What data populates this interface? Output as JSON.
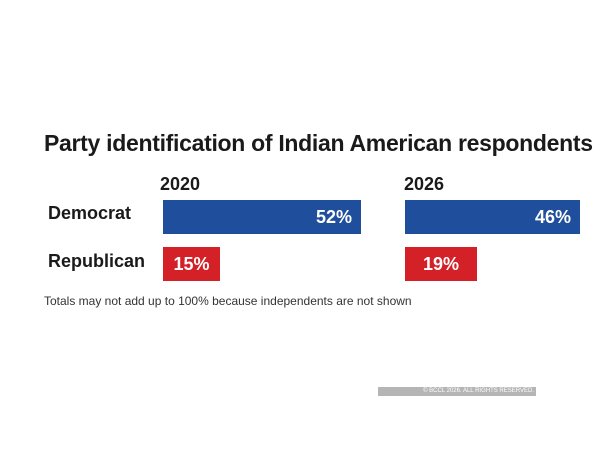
{
  "chart_data": {
    "type": "bar",
    "orientation": "horizontal",
    "title": "Party identification of Indian American respondents",
    "categories": [
      "Democrat",
      "Republican"
    ],
    "panels": [
      {
        "year": "2020",
        "values": [
          52,
          15
        ],
        "labels": [
          "52%",
          "15%"
        ]
      },
      {
        "year": "2026",
        "values": [
          46,
          19
        ],
        "labels": [
          "46%",
          "19%"
        ]
      }
    ],
    "unit": "%",
    "colors": {
      "Democrat": "#1f4e9c",
      "Republican": "#d42027"
    },
    "grid": false,
    "legend": "none"
  },
  "footnote": "Totals may not add up to 100% because independents are not shown",
  "copyright": "© BCCL 2026. ALL RIGHTS RESERVED."
}
